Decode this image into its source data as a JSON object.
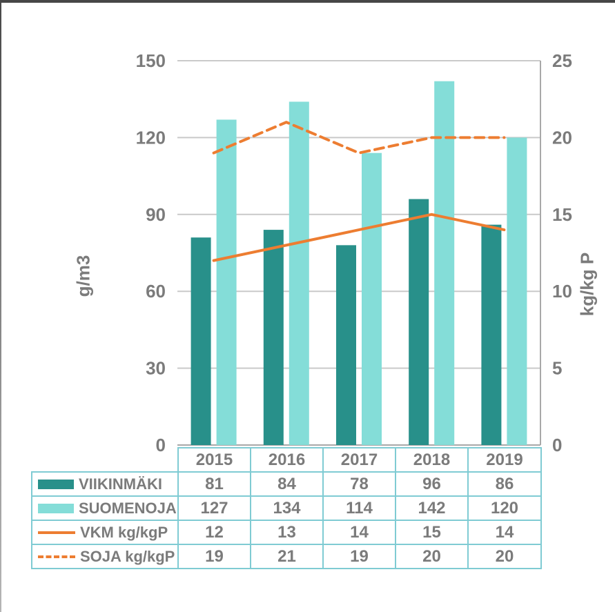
{
  "chart_data": {
    "type": "bar",
    "subtype": "grouped-bars-with-overlaid-lines",
    "title": "",
    "categories": [
      "2015",
      "2016",
      "2017",
      "2018",
      "2019"
    ],
    "series": [
      {
        "name": "VIIKINMÄKI",
        "kind": "bar",
        "axis": "left",
        "line_style": "none",
        "color": "#28908A",
        "values": [
          81,
          84,
          78,
          96,
          86
        ]
      },
      {
        "name": "SUOMENOJA",
        "kind": "bar",
        "axis": "left",
        "line_style": "none",
        "color": "#84DDD8",
        "values": [
          127,
          134,
          114,
          142,
          120
        ]
      },
      {
        "name": "VKM kg/kgP",
        "kind": "line",
        "axis": "right",
        "line_style": "solid",
        "color": "#ED7D31",
        "values": [
          12,
          13,
          14,
          15,
          14
        ]
      },
      {
        "name": "SOJA kg/kgP",
        "kind": "line",
        "axis": "right",
        "line_style": "dashed",
        "color": "#ED7D31",
        "values": [
          19,
          21,
          19,
          20,
          20
        ]
      }
    ],
    "left_axis": {
      "label": "g/m3",
      "min": 0,
      "max": 150,
      "ticks_top_to_bottom": [
        150,
        120,
        90,
        60,
        30,
        0
      ]
    },
    "right_axis": {
      "label": "kg/kg P",
      "min": 0,
      "max": 25,
      "ticks_top_to_bottom": [
        25,
        20,
        15,
        10,
        5,
        0
      ]
    },
    "grid": true,
    "legend_position": "table-below-chart"
  },
  "colors": {
    "gridline": "#C9C9C9",
    "axis_line": "#A8A8A8",
    "tick_text": "#7B7B7B",
    "table_border": "#7FCBD3",
    "frame_top": "#474747"
  }
}
